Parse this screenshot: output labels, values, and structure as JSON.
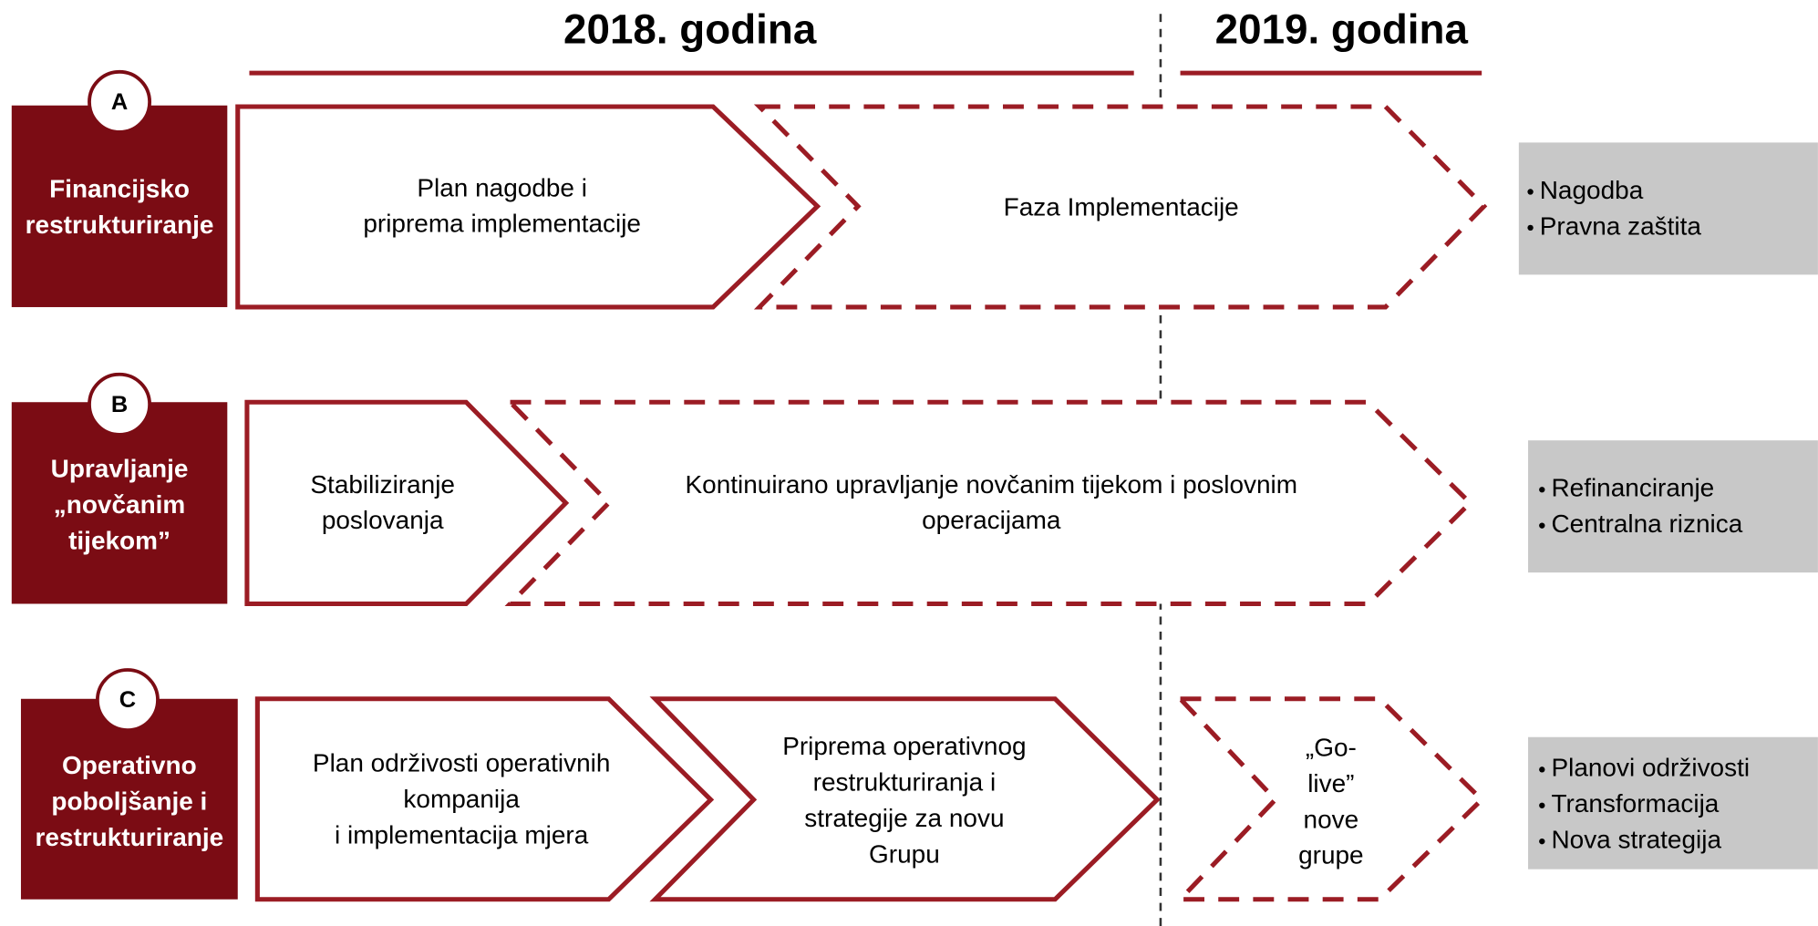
{
  "header": {
    "years": [
      "2018. godina",
      "2019. godina"
    ]
  },
  "rows": [
    {
      "letter": "A",
      "label": [
        "Financijsko",
        "restrukturiranje"
      ],
      "phases": [
        [
          "Plan nagodbe i",
          "priprema implementacije"
        ],
        [
          "Faza Implementacije"
        ]
      ],
      "bullets": [
        "Nagodba",
        "Pravna zaštita"
      ]
    },
    {
      "letter": "B",
      "label": [
        "Upravljanje",
        "„novčanim",
        "tijekom”"
      ],
      "phases": [
        [
          "Stabiliziranje",
          "poslovanja"
        ],
        [
          "Kontinuirano upravljanje novčanim tijekom i poslovnim",
          "operacijama"
        ]
      ],
      "bullets": [
        "Refinanciranje",
        "Centralna riznica"
      ]
    },
    {
      "letter": "C",
      "label": [
        "Operativno",
        "poboljšanje i",
        "restrukturiranje"
      ],
      "phases": [
        [
          "Plan održivosti operativnih",
          "kompanija",
          "i implementacija mjera"
        ],
        [
          "Priprema operativnog",
          "restrukturiranja i",
          "strategije za novu",
          "Grupu"
        ],
        [
          "„Go-",
          "live”",
          "nove",
          "grupe"
        ]
      ],
      "bullets": [
        "Planovi održivosti",
        "Transformacija",
        "Nova strategija"
      ]
    }
  ]
}
